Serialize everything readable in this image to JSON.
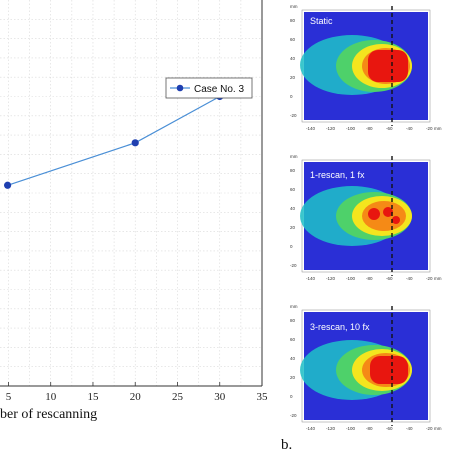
{
  "chart_data": [
    {
      "type": "line",
      "xlabel": "ber of rescanning",
      "xlim": [
        4,
        35
      ],
      "x_ticks": [
        "5",
        "10",
        "15",
        "20",
        "25",
        "30",
        "35"
      ],
      "series": [
        {
          "name": "Case No. 3",
          "color": "#1f3fb0",
          "line_color": "#4a8fd6",
          "x": [
            4.9,
            20,
            30
          ],
          "y": [
            0.52,
            0.63,
            0.75
          ]
        }
      ],
      "legend": "top-right",
      "grid": true
    },
    {
      "type": "heatmap",
      "panels": [
        {
          "label": "Static"
        },
        {
          "label": "1-rescan, 1 fx"
        },
        {
          "label": "3-rescan, 10 fx"
        }
      ],
      "x_ticks": [
        "-140",
        "-120",
        "-100",
        "-80",
        "-60",
        "-40",
        "-20"
      ],
      "x_unit": "mm",
      "y_ticks": [
        "80",
        "60",
        "40",
        "20",
        "0",
        "-20"
      ],
      "y_unit": "mm",
      "dashed_line_at_x": -80
    }
  ],
  "panel_label": "b."
}
